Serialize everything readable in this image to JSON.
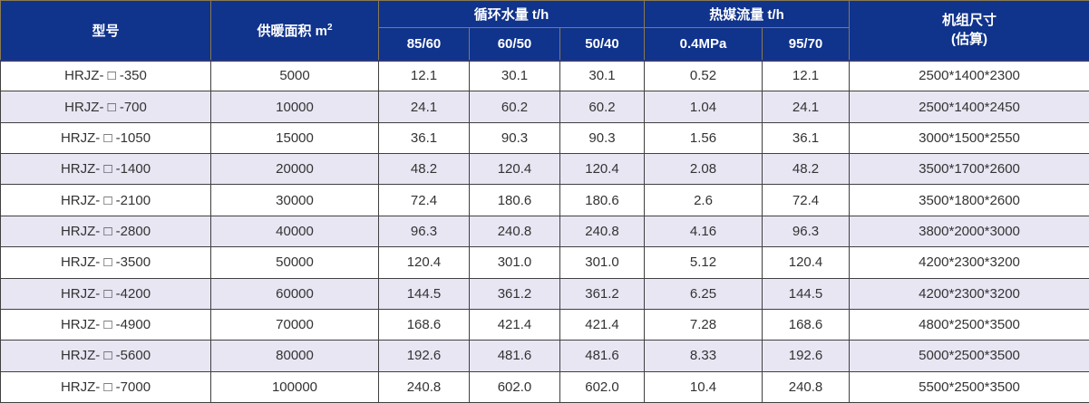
{
  "table": {
    "header": {
      "model": "型号",
      "area_label": "供暖面积 m",
      "area_sup": "2",
      "circulating_group": "循环水量 t/h",
      "circulating_cols": [
        "85/60",
        "60/50",
        "50/40"
      ],
      "heat_group": "热媒流量 t/h",
      "heat_cols": [
        "0.4MPa",
        "95/70"
      ],
      "size_line1": "机组尺寸",
      "size_line2": "(估算)"
    },
    "rows": [
      [
        "HRJZ- □ -350",
        "5000",
        "12.1",
        "30.1",
        "30.1",
        "0.52",
        "12.1",
        "2500*1400*2300"
      ],
      [
        "HRJZ- □ -700",
        "10000",
        "24.1",
        "60.2",
        "60.2",
        "1.04",
        "24.1",
        "2500*1400*2450"
      ],
      [
        "HRJZ- □ -1050",
        "15000",
        "36.1",
        "90.3",
        "90.3",
        "1.56",
        "36.1",
        "3000*1500*2550"
      ],
      [
        "HRJZ- □ -1400",
        "20000",
        "48.2",
        "120.4",
        "120.4",
        "2.08",
        "48.2",
        "3500*1700*2600"
      ],
      [
        "HRJZ- □ -2100",
        "30000",
        "72.4",
        "180.6",
        "180.6",
        "2.6",
        "72.4",
        "3500*1800*2600"
      ],
      [
        "HRJZ- □ -2800",
        "40000",
        "96.3",
        "240.8",
        "240.8",
        "4.16",
        "96.3",
        "3800*2000*3000"
      ],
      [
        "HRJZ- □ -3500",
        "50000",
        "120.4",
        "301.0",
        "301.0",
        "5.12",
        "120.4",
        "4200*2300*3200"
      ],
      [
        "HRJZ- □ -4200",
        "60000",
        "144.5",
        "361.2",
        "361.2",
        "6.25",
        "144.5",
        "4200*2300*3200"
      ],
      [
        "HRJZ- □ -4900",
        "70000",
        "168.6",
        "421.4",
        "421.4",
        "7.28",
        "168.6",
        "4800*2500*3500"
      ],
      [
        "HRJZ- □ -5600",
        "80000",
        "192.6",
        "481.6",
        "481.6",
        "8.33",
        "192.6",
        "5000*2500*3500"
      ],
      [
        "HRJZ- □ -7000",
        "100000",
        "240.8",
        "602.0",
        "602.0",
        "10.4",
        "240.8",
        "5500*2500*3500"
      ]
    ],
    "column_names": [
      "cell-model",
      "cell-heating-area",
      "cell-85-60",
      "cell-60-50",
      "cell-50-40",
      "cell-0-4mpa",
      "cell-95-70",
      "cell-unit-size"
    ]
  },
  "colors": {
    "header_bg": "#10338c",
    "header_text": "#ffffff",
    "header_border": "#8a7a52",
    "body_border": "#404040",
    "alt_row_bg": "#e8e6f3",
    "body_text": "#333333"
  }
}
